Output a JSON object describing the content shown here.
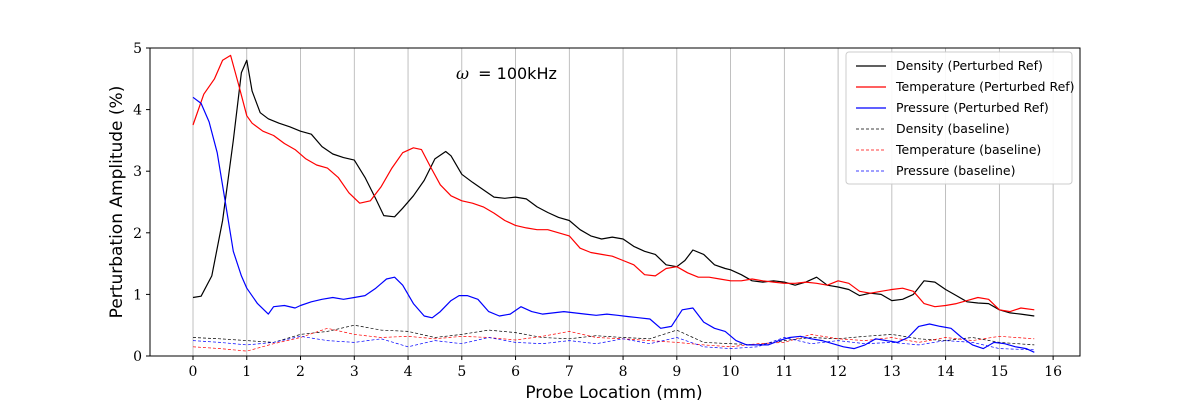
{
  "chart_data": {
    "type": "line",
    "xlabel": "Probe Location (mm)",
    "ylabel": "Perturbation Amplitude (%)",
    "annotation": {
      "symbol": "ω",
      "text": "= 100kHz"
    },
    "xlim": [
      -0.8,
      16.5
    ],
    "ylim": [
      0,
      5
    ],
    "xticks": [
      0,
      1,
      2,
      3,
      4,
      5,
      6,
      7,
      8,
      9,
      10,
      11,
      12,
      13,
      14,
      15,
      16
    ],
    "yticks": [
      0,
      1,
      2,
      3,
      4,
      5
    ],
    "grid": "vertical",
    "legend_position": "top-right",
    "series": [
      {
        "name": "Density (Perturbed Ref)",
        "color": "#000000",
        "style": "solid",
        "x": [
          0,
          0.15,
          0.35,
          0.55,
          0.75,
          0.9,
          1.0,
          1.1,
          1.25,
          1.4,
          1.6,
          1.8,
          2.0,
          2.2,
          2.4,
          2.6,
          2.8,
          3.0,
          3.2,
          3.4,
          3.55,
          3.75,
          3.9,
          4.1,
          4.3,
          4.5,
          4.7,
          4.8,
          5.0,
          5.2,
          5.4,
          5.6,
          5.8,
          6.0,
          6.2,
          6.4,
          6.6,
          6.8,
          7.0,
          7.2,
          7.4,
          7.6,
          7.8,
          8.0,
          8.2,
          8.4,
          8.6,
          8.8,
          9.0,
          9.15,
          9.3,
          9.5,
          9.7,
          9.9,
          10.0,
          10.2,
          10.4,
          10.6,
          10.8,
          11.0,
          11.2,
          11.4,
          11.6,
          11.8,
          12.0,
          12.2,
          12.4,
          12.6,
          12.8,
          13.0,
          13.2,
          13.4,
          13.6,
          13.8,
          14.0,
          14.2,
          14.4,
          14.6,
          14.8,
          15.0,
          15.2,
          15.4,
          15.65
        ],
        "y": [
          0.95,
          0.97,
          1.3,
          2.2,
          3.5,
          4.6,
          4.8,
          4.3,
          3.95,
          3.85,
          3.78,
          3.72,
          3.65,
          3.6,
          3.4,
          3.28,
          3.22,
          3.18,
          2.9,
          2.55,
          2.28,
          2.26,
          2.4,
          2.6,
          2.85,
          3.2,
          3.32,
          3.25,
          2.95,
          2.82,
          2.7,
          2.58,
          2.56,
          2.58,
          2.55,
          2.42,
          2.33,
          2.25,
          2.2,
          2.05,
          1.95,
          1.9,
          1.93,
          1.9,
          1.78,
          1.7,
          1.65,
          1.48,
          1.45,
          1.55,
          1.72,
          1.65,
          1.48,
          1.42,
          1.4,
          1.32,
          1.22,
          1.2,
          1.22,
          1.2,
          1.15,
          1.2,
          1.28,
          1.15,
          1.12,
          1.08,
          0.98,
          1.02,
          1.0,
          0.9,
          0.92,
          1.0,
          1.22,
          1.2,
          1.08,
          0.98,
          0.88,
          0.86,
          0.85,
          0.75,
          0.7,
          0.68,
          0.65
        ]
      },
      {
        "name": "Temperature (Perturbed Ref)",
        "color": "#ff0000",
        "style": "solid",
        "x": [
          0,
          0.2,
          0.4,
          0.55,
          0.7,
          0.85,
          1.0,
          1.1,
          1.3,
          1.5,
          1.7,
          1.9,
          2.1,
          2.3,
          2.5,
          2.7,
          2.9,
          3.1,
          3.3,
          3.5,
          3.7,
          3.9,
          4.1,
          4.25,
          4.4,
          4.6,
          4.8,
          5.0,
          5.2,
          5.4,
          5.6,
          5.8,
          6.0,
          6.2,
          6.4,
          6.6,
          6.8,
          7.0,
          7.2,
          7.4,
          7.6,
          7.8,
          8.0,
          8.2,
          8.4,
          8.6,
          8.8,
          9.0,
          9.2,
          9.4,
          9.6,
          9.8,
          10.0,
          10.2,
          10.4,
          10.6,
          10.8,
          11.0,
          11.2,
          11.4,
          11.6,
          11.8,
          12.0,
          12.2,
          12.4,
          12.6,
          12.8,
          13.0,
          13.2,
          13.4,
          13.6,
          13.8,
          14.0,
          14.2,
          14.4,
          14.6,
          14.8,
          15.0,
          15.2,
          15.4,
          15.65
        ],
        "y": [
          3.75,
          4.25,
          4.5,
          4.8,
          4.88,
          4.4,
          3.9,
          3.78,
          3.65,
          3.58,
          3.45,
          3.35,
          3.2,
          3.1,
          3.05,
          2.9,
          2.65,
          2.48,
          2.52,
          2.75,
          3.05,
          3.3,
          3.38,
          3.35,
          3.1,
          2.78,
          2.6,
          2.52,
          2.48,
          2.42,
          2.32,
          2.2,
          2.12,
          2.08,
          2.05,
          2.05,
          2.0,
          1.95,
          1.75,
          1.68,
          1.65,
          1.62,
          1.55,
          1.48,
          1.32,
          1.3,
          1.42,
          1.45,
          1.35,
          1.28,
          1.28,
          1.25,
          1.22,
          1.22,
          1.25,
          1.22,
          1.2,
          1.18,
          1.18,
          1.2,
          1.18,
          1.15,
          1.22,
          1.18,
          1.05,
          1.02,
          1.05,
          1.08,
          1.1,
          1.05,
          0.85,
          0.8,
          0.82,
          0.85,
          0.9,
          0.95,
          0.92,
          0.75,
          0.72,
          0.78,
          0.75
        ]
      },
      {
        "name": "Pressure (Perturbed Ref)",
        "color": "#0000ff",
        "style": "solid",
        "x": [
          0,
          0.15,
          0.3,
          0.45,
          0.6,
          0.75,
          0.9,
          1.0,
          1.2,
          1.4,
          1.5,
          1.7,
          1.9,
          2.0,
          2.2,
          2.4,
          2.6,
          2.8,
          3.0,
          3.2,
          3.4,
          3.6,
          3.75,
          3.9,
          4.1,
          4.3,
          4.45,
          4.6,
          4.8,
          4.95,
          5.1,
          5.3,
          5.5,
          5.7,
          5.9,
          6.1,
          6.3,
          6.5,
          6.7,
          6.9,
          7.1,
          7.3,
          7.5,
          7.7,
          7.9,
          8.1,
          8.3,
          8.5,
          8.7,
          8.9,
          9.1,
          9.3,
          9.5,
          9.7,
          9.9,
          10.1,
          10.3,
          10.5,
          10.7,
          10.9,
          11.1,
          11.3,
          11.5,
          11.7,
          11.9,
          12.1,
          12.3,
          12.5,
          12.7,
          12.9,
          13.1,
          13.3,
          13.5,
          13.7,
          13.9,
          14.1,
          14.3,
          14.5,
          14.7,
          14.9,
          15.1,
          15.3,
          15.5,
          15.65
        ],
        "y": [
          4.2,
          4.1,
          3.8,
          3.3,
          2.5,
          1.7,
          1.3,
          1.1,
          0.85,
          0.68,
          0.8,
          0.82,
          0.78,
          0.82,
          0.88,
          0.92,
          0.95,
          0.92,
          0.95,
          0.98,
          1.1,
          1.25,
          1.28,
          1.15,
          0.85,
          0.65,
          0.62,
          0.72,
          0.9,
          0.98,
          0.98,
          0.92,
          0.72,
          0.65,
          0.68,
          0.8,
          0.72,
          0.68,
          0.7,
          0.72,
          0.7,
          0.68,
          0.66,
          0.68,
          0.66,
          0.64,
          0.62,
          0.6,
          0.45,
          0.48,
          0.75,
          0.78,
          0.55,
          0.45,
          0.4,
          0.25,
          0.18,
          0.18,
          0.18,
          0.25,
          0.3,
          0.32,
          0.28,
          0.25,
          0.2,
          0.15,
          0.12,
          0.18,
          0.28,
          0.25,
          0.22,
          0.3,
          0.48,
          0.52,
          0.48,
          0.45,
          0.3,
          0.18,
          0.12,
          0.22,
          0.2,
          0.15,
          0.12,
          0.06
        ]
      },
      {
        "name": "Density (baseline)",
        "color": "#000000",
        "style": "dashed",
        "x": [
          0,
          0.5,
          1.0,
          1.5,
          2.0,
          2.5,
          3.0,
          3.5,
          4.0,
          4.5,
          5.0,
          5.5,
          6.0,
          6.5,
          7.0,
          7.5,
          8.0,
          8.5,
          9.0,
          9.5,
          10.0,
          10.5,
          11.0,
          11.5,
          12.0,
          12.5,
          13.0,
          13.5,
          14.0,
          14.5,
          15.0,
          15.65
        ],
        "y": [
          0.3,
          0.28,
          0.25,
          0.22,
          0.35,
          0.4,
          0.5,
          0.42,
          0.4,
          0.3,
          0.35,
          0.42,
          0.38,
          0.3,
          0.28,
          0.33,
          0.3,
          0.28,
          0.42,
          0.22,
          0.2,
          0.18,
          0.25,
          0.3,
          0.28,
          0.32,
          0.35,
          0.28,
          0.25,
          0.3,
          0.22,
          0.18
        ]
      },
      {
        "name": "Temperature (baseline)",
        "color": "#ff0000",
        "style": "dashed",
        "x": [
          0,
          0.5,
          1.0,
          1.5,
          2.0,
          2.5,
          3.0,
          3.5,
          4.0,
          4.5,
          5.0,
          5.5,
          6.0,
          6.5,
          7.0,
          7.5,
          8.0,
          8.5,
          9.0,
          9.5,
          10.0,
          10.5,
          11.0,
          11.5,
          12.0,
          12.5,
          13.0,
          13.5,
          14.0,
          14.5,
          15.0,
          15.65
        ],
        "y": [
          0.15,
          0.12,
          0.08,
          0.2,
          0.3,
          0.45,
          0.35,
          0.3,
          0.32,
          0.28,
          0.32,
          0.3,
          0.26,
          0.32,
          0.4,
          0.3,
          0.28,
          0.25,
          0.22,
          0.18,
          0.15,
          0.2,
          0.22,
          0.35,
          0.28,
          0.25,
          0.3,
          0.22,
          0.3,
          0.25,
          0.32,
          0.28
        ]
      },
      {
        "name": "Pressure (baseline)",
        "color": "#0000ff",
        "style": "dashed",
        "x": [
          0,
          0.5,
          1.0,
          1.5,
          2.0,
          2.5,
          3.0,
          3.5,
          4.0,
          4.5,
          5.0,
          5.5,
          6.0,
          6.5,
          7.0,
          7.5,
          8.0,
          8.5,
          9.0,
          9.5,
          10.0,
          10.5,
          11.0,
          11.5,
          12.0,
          12.5,
          13.0,
          13.5,
          14.0,
          14.5,
          15.0,
          15.65
        ],
        "y": [
          0.25,
          0.22,
          0.18,
          0.22,
          0.32,
          0.25,
          0.22,
          0.28,
          0.15,
          0.25,
          0.2,
          0.3,
          0.22,
          0.2,
          0.25,
          0.2,
          0.28,
          0.2,
          0.3,
          0.15,
          0.12,
          0.15,
          0.3,
          0.2,
          0.25,
          0.2,
          0.22,
          0.18,
          0.25,
          0.22,
          0.12,
          0.1
        ]
      }
    ]
  }
}
